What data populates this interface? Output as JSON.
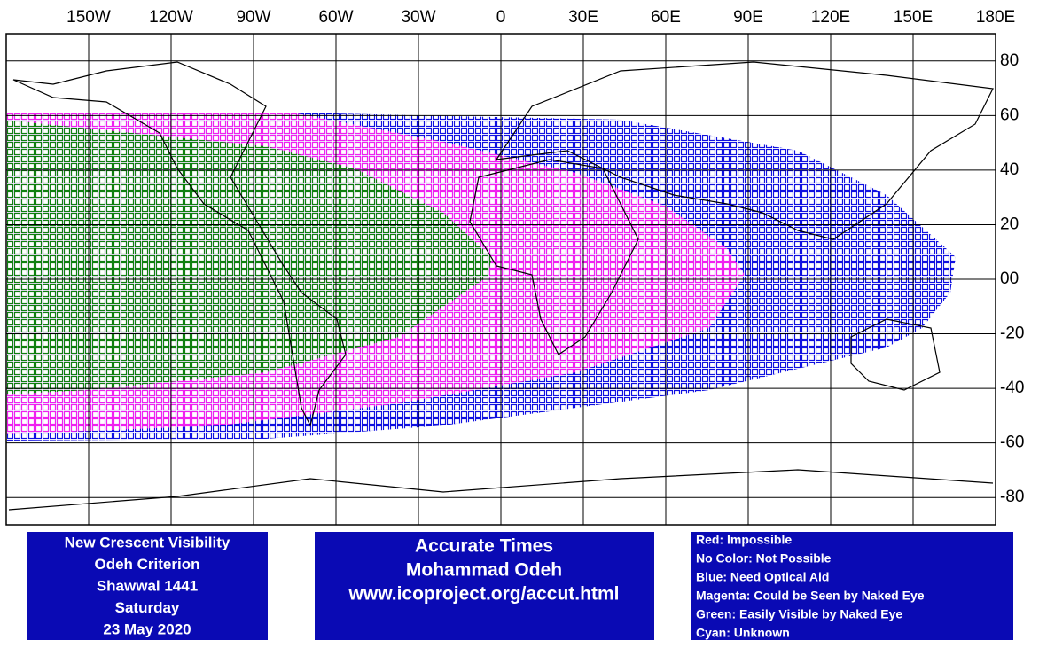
{
  "map": {
    "lonlim": [
      -180,
      180
    ],
    "latlim": [
      -90,
      90
    ],
    "lon_ticks": [
      {
        "value": -150,
        "label": "150W"
      },
      {
        "value": -120,
        "label": "120W"
      },
      {
        "value": -90,
        "label": "90W"
      },
      {
        "value": -60,
        "label": "60W"
      },
      {
        "value": -30,
        "label": "30W"
      },
      0,
      {
        "value": 30,
        "label": "30E"
      },
      {
        "value": 60,
        "label": "60E"
      },
      {
        "value": 90,
        "label": "90E"
      },
      {
        "value": 120,
        "label": "120E"
      },
      {
        "value": 150,
        "label": "150E"
      },
      {
        "value": 180,
        "label": "180E"
      }
    ],
    "lat_ticks": [
      80,
      60,
      40,
      20,
      {
        "value": 0,
        "label": "00"
      },
      -20,
      -40,
      -60,
      -80
    ]
  },
  "info_box": [
    "New Crescent Visibility",
    "Odeh Criterion",
    "Shawwal 1441",
    "Saturday",
    "23 May 2020"
  ],
  "credit_box": [
    "Accurate Times",
    "Mohammad Odeh",
    "www.icoproject.org/accut.html"
  ],
  "legend_box": [
    "Red: Impossible",
    "No Color: Not Possible",
    "Blue: Need Optical Aid",
    "Magenta: Could be Seen by Naked Eye",
    "Green: Easily Visible by Naked Eye",
    "Cyan: Unknown"
  ]
}
